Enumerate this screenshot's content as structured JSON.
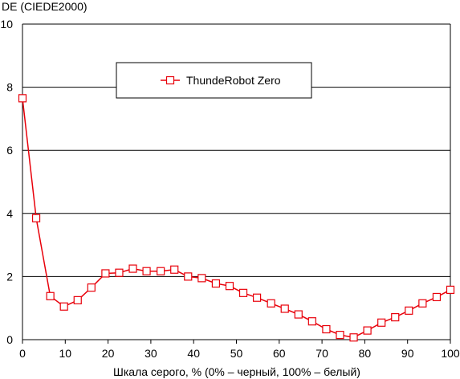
{
  "chart_data": {
    "type": "line",
    "xlabel": "Шкала серого, % (0% – черный, 100% – белый)",
    "ylabel": "DE (CIEDE2000)",
    "xlim": [
      0,
      100
    ],
    "ylim": [
      0,
      10
    ],
    "x_ticks": [
      "0",
      "10",
      "20",
      "30",
      "40",
      "50",
      "60",
      "70",
      "80",
      "90",
      "100"
    ],
    "y_ticks": [
      "0",
      "2",
      "4",
      "6",
      "8",
      "10"
    ],
    "grid": "horizontal",
    "legend_position": "top-center",
    "series": [
      {
        "name": "ThundeRobot Zero",
        "color": "#e8000a",
        "marker": "square-open",
        "x": [
          0,
          3.2,
          6.5,
          9.7,
          12.9,
          16.1,
          19.4,
          22.6,
          25.8,
          29.0,
          32.3,
          35.5,
          38.7,
          41.9,
          45.2,
          48.4,
          51.6,
          54.8,
          58.1,
          61.3,
          64.5,
          67.7,
          71.0,
          74.2,
          77.4,
          80.6,
          83.9,
          87.1,
          90.3,
          93.5,
          96.8,
          100
        ],
        "y": [
          7.65,
          3.85,
          1.38,
          1.05,
          1.25,
          1.65,
          2.1,
          2.12,
          2.25,
          2.17,
          2.17,
          2.22,
          2.0,
          1.95,
          1.78,
          1.7,
          1.48,
          1.33,
          1.15,
          0.98,
          0.8,
          0.58,
          0.33,
          0.15,
          0.07,
          0.29,
          0.54,
          0.71,
          0.92,
          1.15,
          1.35,
          1.58
        ]
      }
    ]
  }
}
